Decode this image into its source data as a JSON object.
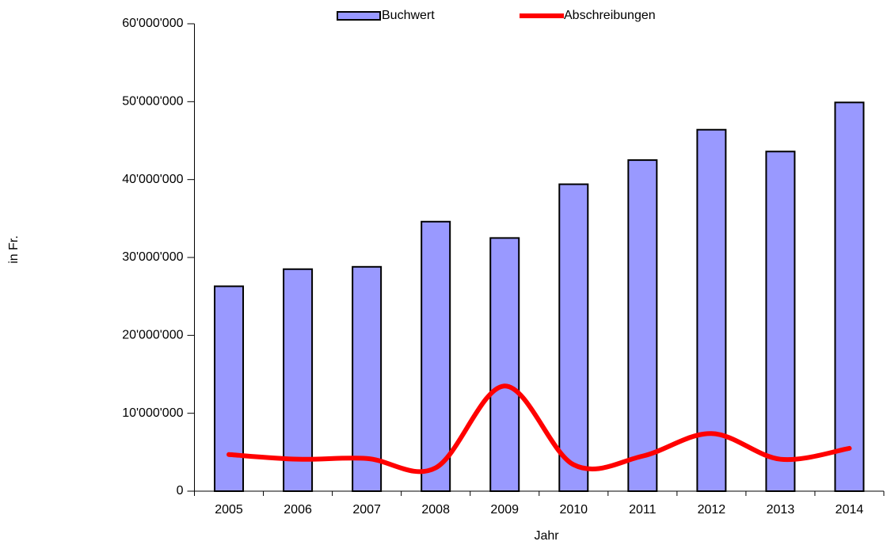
{
  "chart_data": {
    "type": "bar_line",
    "x_label": "Jahr",
    "y_label": "in Fr.",
    "categories": [
      "2005",
      "2006",
      "2007",
      "2008",
      "2009",
      "2010",
      "2011",
      "2012",
      "2013",
      "2014"
    ],
    "series": [
      {
        "name": "Buchwert",
        "type": "bar",
        "color": "#9999ff",
        "values": [
          26300000,
          28500000,
          28800000,
          34600000,
          32500000,
          39400000,
          42500000,
          46400000,
          43600000,
          49900000
        ]
      },
      {
        "name": "Abschreibungen",
        "type": "line",
        "color": "#ff0000",
        "values": [
          4700000,
          4100000,
          4200000,
          3000000,
          13500000,
          3400000,
          4500000,
          7400000,
          4100000,
          5500000
        ]
      }
    ],
    "ylim": [
      0,
      60000000
    ],
    "yticks": [
      0,
      {
        "value": 10000000,
        "label": "10'000'000"
      },
      {
        "value": 20000000,
        "label": "20'000'000"
      },
      {
        "value": 30000000,
        "label": "30'000'000"
      },
      {
        "value": 40000000,
        "label": "40'000'000"
      },
      {
        "value": 50000000,
        "label": "50'000'000"
      },
      {
        "value": 60000000,
        "label": "60'000'000"
      }
    ],
    "legend": "top",
    "grid": false
  }
}
